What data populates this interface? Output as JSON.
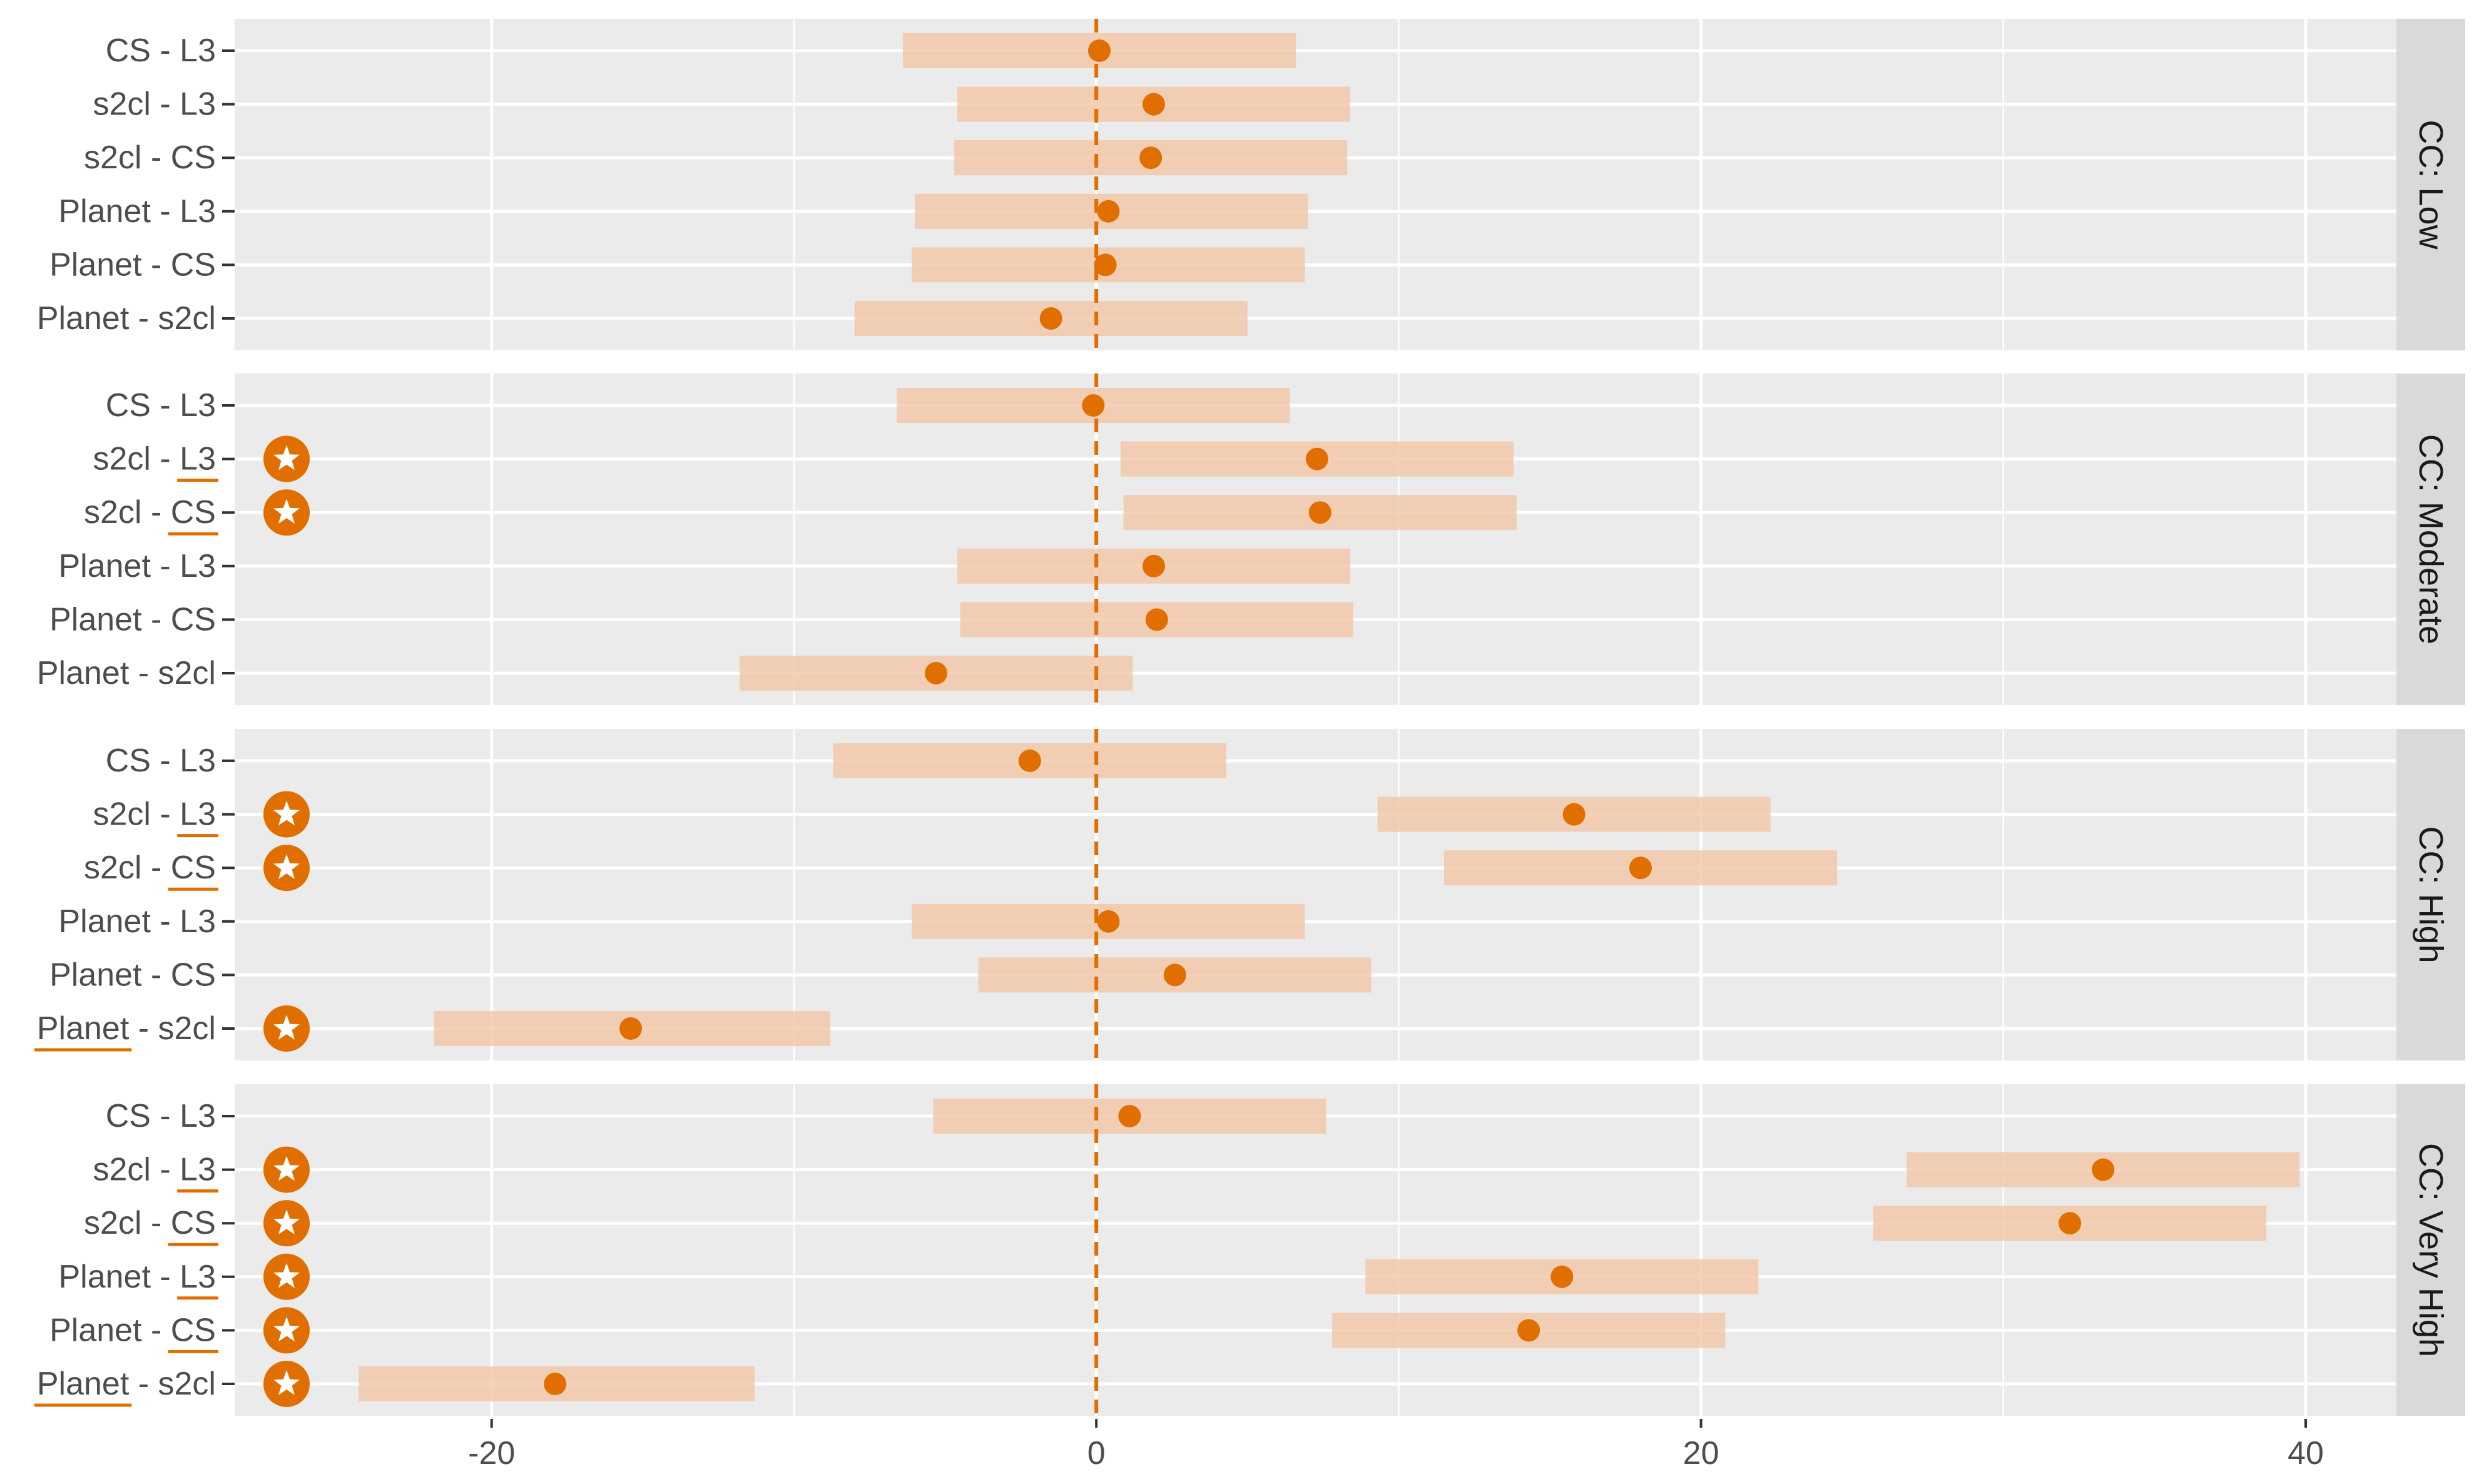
{
  "chart_data": {
    "type": "forest-interval",
    "colors": {
      "panel_bg": "#ebebeb",
      "grid": "#ffffff",
      "strip_bg": "#d9d9d9",
      "point": "#e06f00",
      "interval": "#f2c6a6",
      "reference_line": "#e06f00",
      "axis_text": "#4d4d4d"
    },
    "xlim": [
      -28.5,
      43
    ],
    "x_major_ticks": [
      -20,
      0,
      20,
      40
    ],
    "x_tick_labels": [
      "-20",
      "0",
      "20",
      "40"
    ],
    "x_minor_ticks": [
      -10,
      10,
      30
    ],
    "reference_line_x": 0,
    "grid": true,
    "panels": [
      {
        "strip": "CC: Low",
        "rows": [
          {
            "label": "CS - L3",
            "left": "CS",
            "sep": " - ",
            "right": "L3",
            "estimate": 0.1,
            "lower": -6.4,
            "upper": 6.6,
            "significant": false,
            "underline": ""
          },
          {
            "label": "s2cl - L3",
            "left": "s2cl",
            "sep": " - ",
            "right": "L3",
            "estimate": 1.9,
            "lower": -4.6,
            "upper": 8.4,
            "significant": false,
            "underline": ""
          },
          {
            "label": "s2cl - CS",
            "left": "s2cl",
            "sep": " - ",
            "right": "CS",
            "estimate": 1.8,
            "lower": -4.7,
            "upper": 8.3,
            "significant": false,
            "underline": ""
          },
          {
            "label": "Planet - L3",
            "left": "Planet",
            "sep": " - ",
            "right": "L3",
            "estimate": 0.4,
            "lower": -6.0,
            "upper": 7.0,
            "significant": false,
            "underline": ""
          },
          {
            "label": "Planet - CS",
            "left": "Planet",
            "sep": " - ",
            "right": "CS",
            "estimate": 0.3,
            "lower": -6.1,
            "upper": 6.9,
            "significant": false,
            "underline": ""
          },
          {
            "label": "Planet - s2cl",
            "left": "Planet",
            "sep": " - ",
            "right": "s2cl",
            "estimate": -1.5,
            "lower": -8.0,
            "upper": 5.0,
            "significant": false,
            "underline": ""
          }
        ]
      },
      {
        "strip": "CC: Moderate",
        "rows": [
          {
            "label": "CS - L3",
            "left": "CS",
            "sep": " - ",
            "right": "L3",
            "estimate": -0.1,
            "lower": -6.6,
            "upper": 6.4,
            "significant": false,
            "underline": ""
          },
          {
            "label": "s2cl - L3",
            "left": "s2cl",
            "sep": " - ",
            "right": "L3",
            "estimate": 7.3,
            "lower": 0.8,
            "upper": 13.8,
            "significant": true,
            "underline": "right"
          },
          {
            "label": "s2cl - CS",
            "left": "s2cl",
            "sep": " - ",
            "right": "CS",
            "estimate": 7.4,
            "lower": 0.9,
            "upper": 13.9,
            "significant": true,
            "underline": "right"
          },
          {
            "label": "Planet - L3",
            "left": "Planet",
            "sep": " - ",
            "right": "L3",
            "estimate": 1.9,
            "lower": -4.6,
            "upper": 8.4,
            "significant": false,
            "underline": ""
          },
          {
            "label": "Planet - CS",
            "left": "Planet",
            "sep": " - ",
            "right": "CS",
            "estimate": 2.0,
            "lower": -4.5,
            "upper": 8.5,
            "significant": false,
            "underline": ""
          },
          {
            "label": "Planet - s2cl",
            "left": "Planet",
            "sep": " - ",
            "right": "s2cl",
            "estimate": -5.3,
            "lower": -11.8,
            "upper": 1.2,
            "significant": false,
            "underline": ""
          }
        ]
      },
      {
        "strip": "CC: High",
        "rows": [
          {
            "label": "CS - L3",
            "left": "CS",
            "sep": " - ",
            "right": "L3",
            "estimate": -2.2,
            "lower": -8.7,
            "upper": 4.3,
            "significant": false,
            "underline": ""
          },
          {
            "label": "s2cl - L3",
            "left": "s2cl",
            "sep": " - ",
            "right": "L3",
            "estimate": 15.8,
            "lower": 9.3,
            "upper": 22.3,
            "significant": true,
            "underline": "right"
          },
          {
            "label": "s2cl - CS",
            "left": "s2cl",
            "sep": " - ",
            "right": "CS",
            "estimate": 18.0,
            "lower": 11.5,
            "upper": 24.5,
            "significant": true,
            "underline": "right"
          },
          {
            "label": "Planet - L3",
            "left": "Planet",
            "sep": " - ",
            "right": "L3",
            "estimate": 0.4,
            "lower": -6.1,
            "upper": 6.9,
            "significant": false,
            "underline": ""
          },
          {
            "label": "Planet - CS",
            "left": "Planet",
            "sep": " - ",
            "right": "CS",
            "estimate": 2.6,
            "lower": -3.9,
            "upper": 9.1,
            "significant": false,
            "underline": ""
          },
          {
            "label": "Planet - s2cl",
            "left": "Planet",
            "sep": " - ",
            "right": "s2cl",
            "estimate": -15.4,
            "lower": -21.9,
            "upper": -8.8,
            "significant": true,
            "underline": "left"
          }
        ]
      },
      {
        "strip": "CC: Very High",
        "rows": [
          {
            "label": "CS - L3",
            "left": "CS",
            "sep": " - ",
            "right": "L3",
            "estimate": 1.1,
            "lower": -5.4,
            "upper": 7.6,
            "significant": false,
            "underline": ""
          },
          {
            "label": "s2cl - L3",
            "left": "s2cl",
            "sep": " - ",
            "right": "L3",
            "estimate": 33.3,
            "lower": 26.8,
            "upper": 39.8,
            "significant": true,
            "underline": "right"
          },
          {
            "label": "s2cl - CS",
            "left": "s2cl",
            "sep": " - ",
            "right": "CS",
            "estimate": 32.2,
            "lower": 25.7,
            "upper": 38.7,
            "significant": true,
            "underline": "right"
          },
          {
            "label": "Planet - L3",
            "left": "Planet",
            "sep": " - ",
            "right": "L3",
            "estimate": 15.4,
            "lower": 8.9,
            "upper": 21.9,
            "significant": true,
            "underline": "right"
          },
          {
            "label": "Planet - CS",
            "left": "Planet",
            "sep": " - ",
            "right": "CS",
            "estimate": 14.3,
            "lower": 7.8,
            "upper": 20.8,
            "significant": true,
            "underline": "right"
          },
          {
            "label": "Planet - s2cl",
            "left": "Planet",
            "sep": " - ",
            "right": "s2cl",
            "estimate": -17.9,
            "lower": -24.4,
            "upper": -11.3,
            "significant": true,
            "underline": "left"
          }
        ]
      }
    ]
  }
}
